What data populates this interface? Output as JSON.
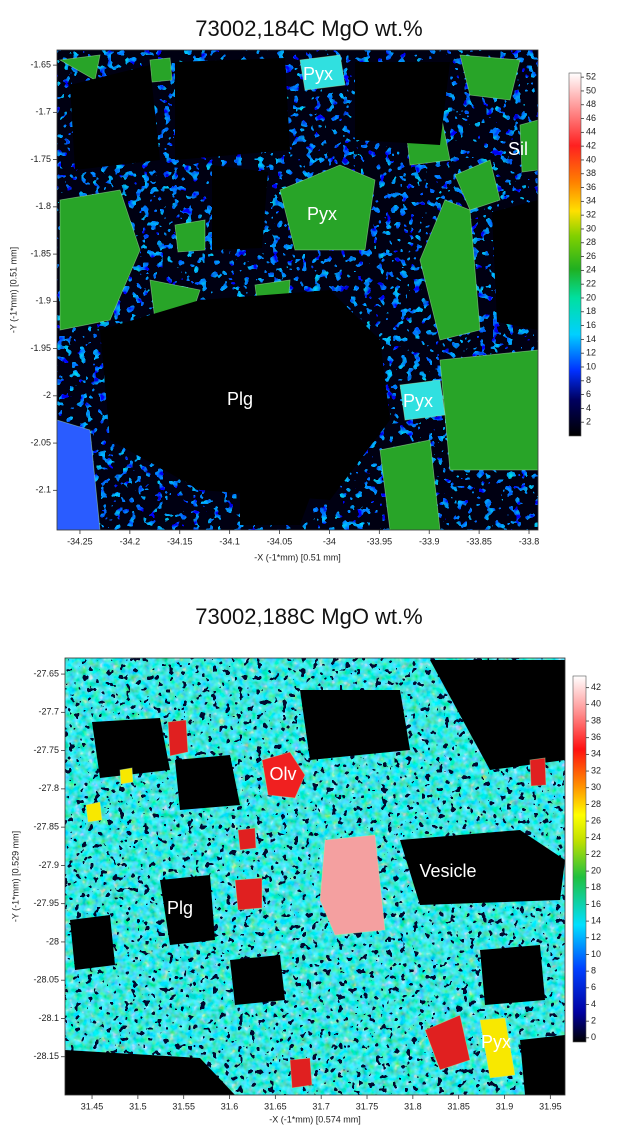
{
  "chart_data": [
    {
      "type": "heatmap",
      "title": "73002,184C MgO wt.%",
      "xlabel": "-X (-1*mm)  [0.51 mm]",
      "ylabel": "-Y (-1*mm)  [0.51 mm]",
      "xlim": [
        -34.273,
        -33.791
      ],
      "xticks": [
        -34.25,
        -34.2,
        -34.15,
        -34.1,
        -34.05,
        -34,
        -33.95,
        -33.9,
        -33.85,
        -33.8
      ],
      "ylim": [
        -2.142,
        -1.634
      ],
      "yticks": [
        -1.65,
        -1.7,
        -1.75,
        -1.8,
        -1.85,
        -1.9,
        -1.95,
        -2,
        -2.05,
        -2.1
      ],
      "colorbar": {
        "lim": [
          0,
          52.6
        ],
        "ticks": [
          2,
          4,
          6,
          8,
          10,
          12,
          14,
          16,
          18,
          20,
          22,
          24,
          26,
          28,
          30,
          32,
          34,
          36,
          38,
          40,
          42,
          44,
          46,
          48,
          50,
          52
        ]
      },
      "annotations": [
        "Pyx",
        "Sil",
        "Pyx",
        "Plg",
        "Pyx"
      ]
    },
    {
      "type": "heatmap",
      "title": "73002,188C MgO wt.%",
      "xlabel": "-X (-1*mm)  [0.574 mm]",
      "ylabel": "-Y (-1*mm)  [0.529 mm]",
      "xlim": [
        31.4205,
        31.966
      ],
      "xticks": [
        31.45,
        31.5,
        31.55,
        31.6,
        31.65,
        31.7,
        31.75,
        31.8,
        31.85,
        31.9,
        31.95
      ],
      "ylim": [
        -28.2,
        -27.629
      ],
      "yticks": [
        -27.65,
        -27.7,
        -27.75,
        -27.8,
        -27.85,
        -27.9,
        -27.95,
        -28,
        -28.05,
        -28.1,
        -28.15
      ],
      "colorbar": {
        "lim": [
          -0.5,
          43.4
        ],
        "ticks": [
          0,
          2,
          4,
          6,
          8,
          10,
          12,
          14,
          16,
          18,
          20,
          22,
          24,
          26,
          28,
          30,
          32,
          34,
          36,
          38,
          40,
          42
        ]
      },
      "annotations": [
        "Olv",
        "Vesicle",
        "Plg",
        "Pyx"
      ]
    }
  ]
}
